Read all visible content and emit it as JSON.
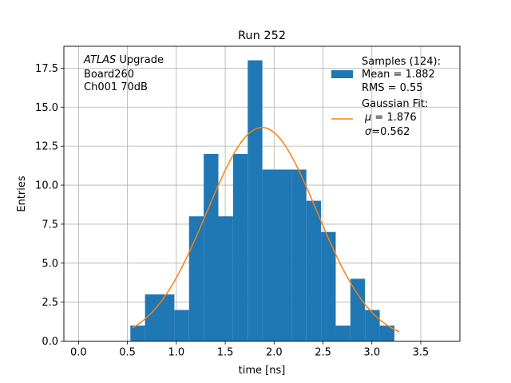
{
  "chart_data": {
    "type": "bar",
    "title": "Run 252",
    "xlabel": "time [ns]",
    "ylabel": "Entries",
    "xlim": [
      -0.15,
      3.9
    ],
    "ylim": [
      0,
      18.9
    ],
    "xticks": [
      "0.0",
      "0.5",
      "1.0",
      "1.5",
      "2.0",
      "2.5",
      "3.0",
      "3.5"
    ],
    "yticks": [
      "0.0",
      "2.5",
      "5.0",
      "7.5",
      "10.0",
      "12.5",
      "15.0",
      "17.5"
    ],
    "grid": true,
    "bin_edges": [
      0.53,
      0.68,
      0.83,
      0.98,
      1.13,
      1.28,
      1.43,
      1.58,
      1.73,
      1.88,
      2.03,
      2.18,
      2.33,
      2.48,
      2.63,
      2.78,
      2.93,
      3.08,
      3.23
    ],
    "counts": [
      1,
      3,
      3,
      2,
      8,
      12,
      8,
      12,
      18,
      11,
      11,
      11,
      9,
      7,
      1,
      4,
      2,
      1
    ],
    "bar_color": "#1f77b4",
    "fit": {
      "name": "Gaussian Fit",
      "mu": 1.876,
      "sigma": 0.562,
      "amplitude": 13.7,
      "x_range": [
        0.55,
        3.28
      ],
      "color": "#ff7f0e"
    },
    "annotation": {
      "italic": "ATLAS",
      "line1_rest": " Upgrade",
      "line2": " Board260",
      "line3": " Ch001 70dB"
    },
    "legend": {
      "placement": "top-right",
      "samples_title": "Samples (124):",
      "samples_mean": " Mean = 1.882",
      "samples_rms": " RMS = 0.55",
      "fit_title": "Gaussian Fit:",
      "fit_mu_sym": "μ",
      "fit_mu_rest": " = 1.876",
      "fit_sigma_sym": "σ",
      "fit_sigma_rest": "=0.562"
    }
  }
}
